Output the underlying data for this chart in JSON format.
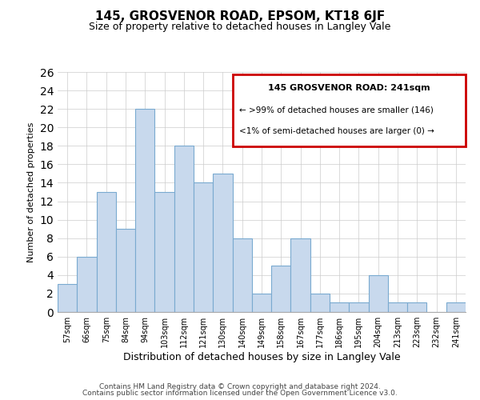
{
  "title": "145, GROSVENOR ROAD, EPSOM, KT18 6JF",
  "subtitle": "Size of property relative to detached houses in Langley Vale",
  "xlabel": "Distribution of detached houses by size in Langley Vale",
  "ylabel": "Number of detached properties",
  "bar_labels": [
    "57sqm",
    "66sqm",
    "75sqm",
    "84sqm",
    "94sqm",
    "103sqm",
    "112sqm",
    "121sqm",
    "130sqm",
    "140sqm",
    "149sqm",
    "158sqm",
    "167sqm",
    "177sqm",
    "186sqm",
    "195sqm",
    "204sqm",
    "213sqm",
    "223sqm",
    "232sqm",
    "241sqm"
  ],
  "bar_values": [
    3,
    6,
    13,
    9,
    22,
    13,
    18,
    14,
    15,
    8,
    2,
    5,
    8,
    2,
    1,
    1,
    4,
    1,
    1,
    0,
    1
  ],
  "bar_color": "#c8d9ed",
  "bar_edge_color": "#7aaad0",
  "box_title": "145 GROSVENOR ROAD: 241sqm",
  "box_line1": "← >99% of detached houses are smaller (146)",
  "box_line2": "<1% of semi-detached houses are larger (0) →",
  "box_edge_color": "#cc0000",
  "ylim": [
    0,
    26
  ],
  "yticks": [
    0,
    2,
    4,
    6,
    8,
    10,
    12,
    14,
    16,
    18,
    20,
    22,
    24,
    26
  ],
  "footer1": "Contains HM Land Registry data © Crown copyright and database right 2024.",
  "footer2": "Contains public sector information licensed under the Open Government Licence v3.0.",
  "background_color": "#ffffff",
  "grid_color": "#cccccc"
}
